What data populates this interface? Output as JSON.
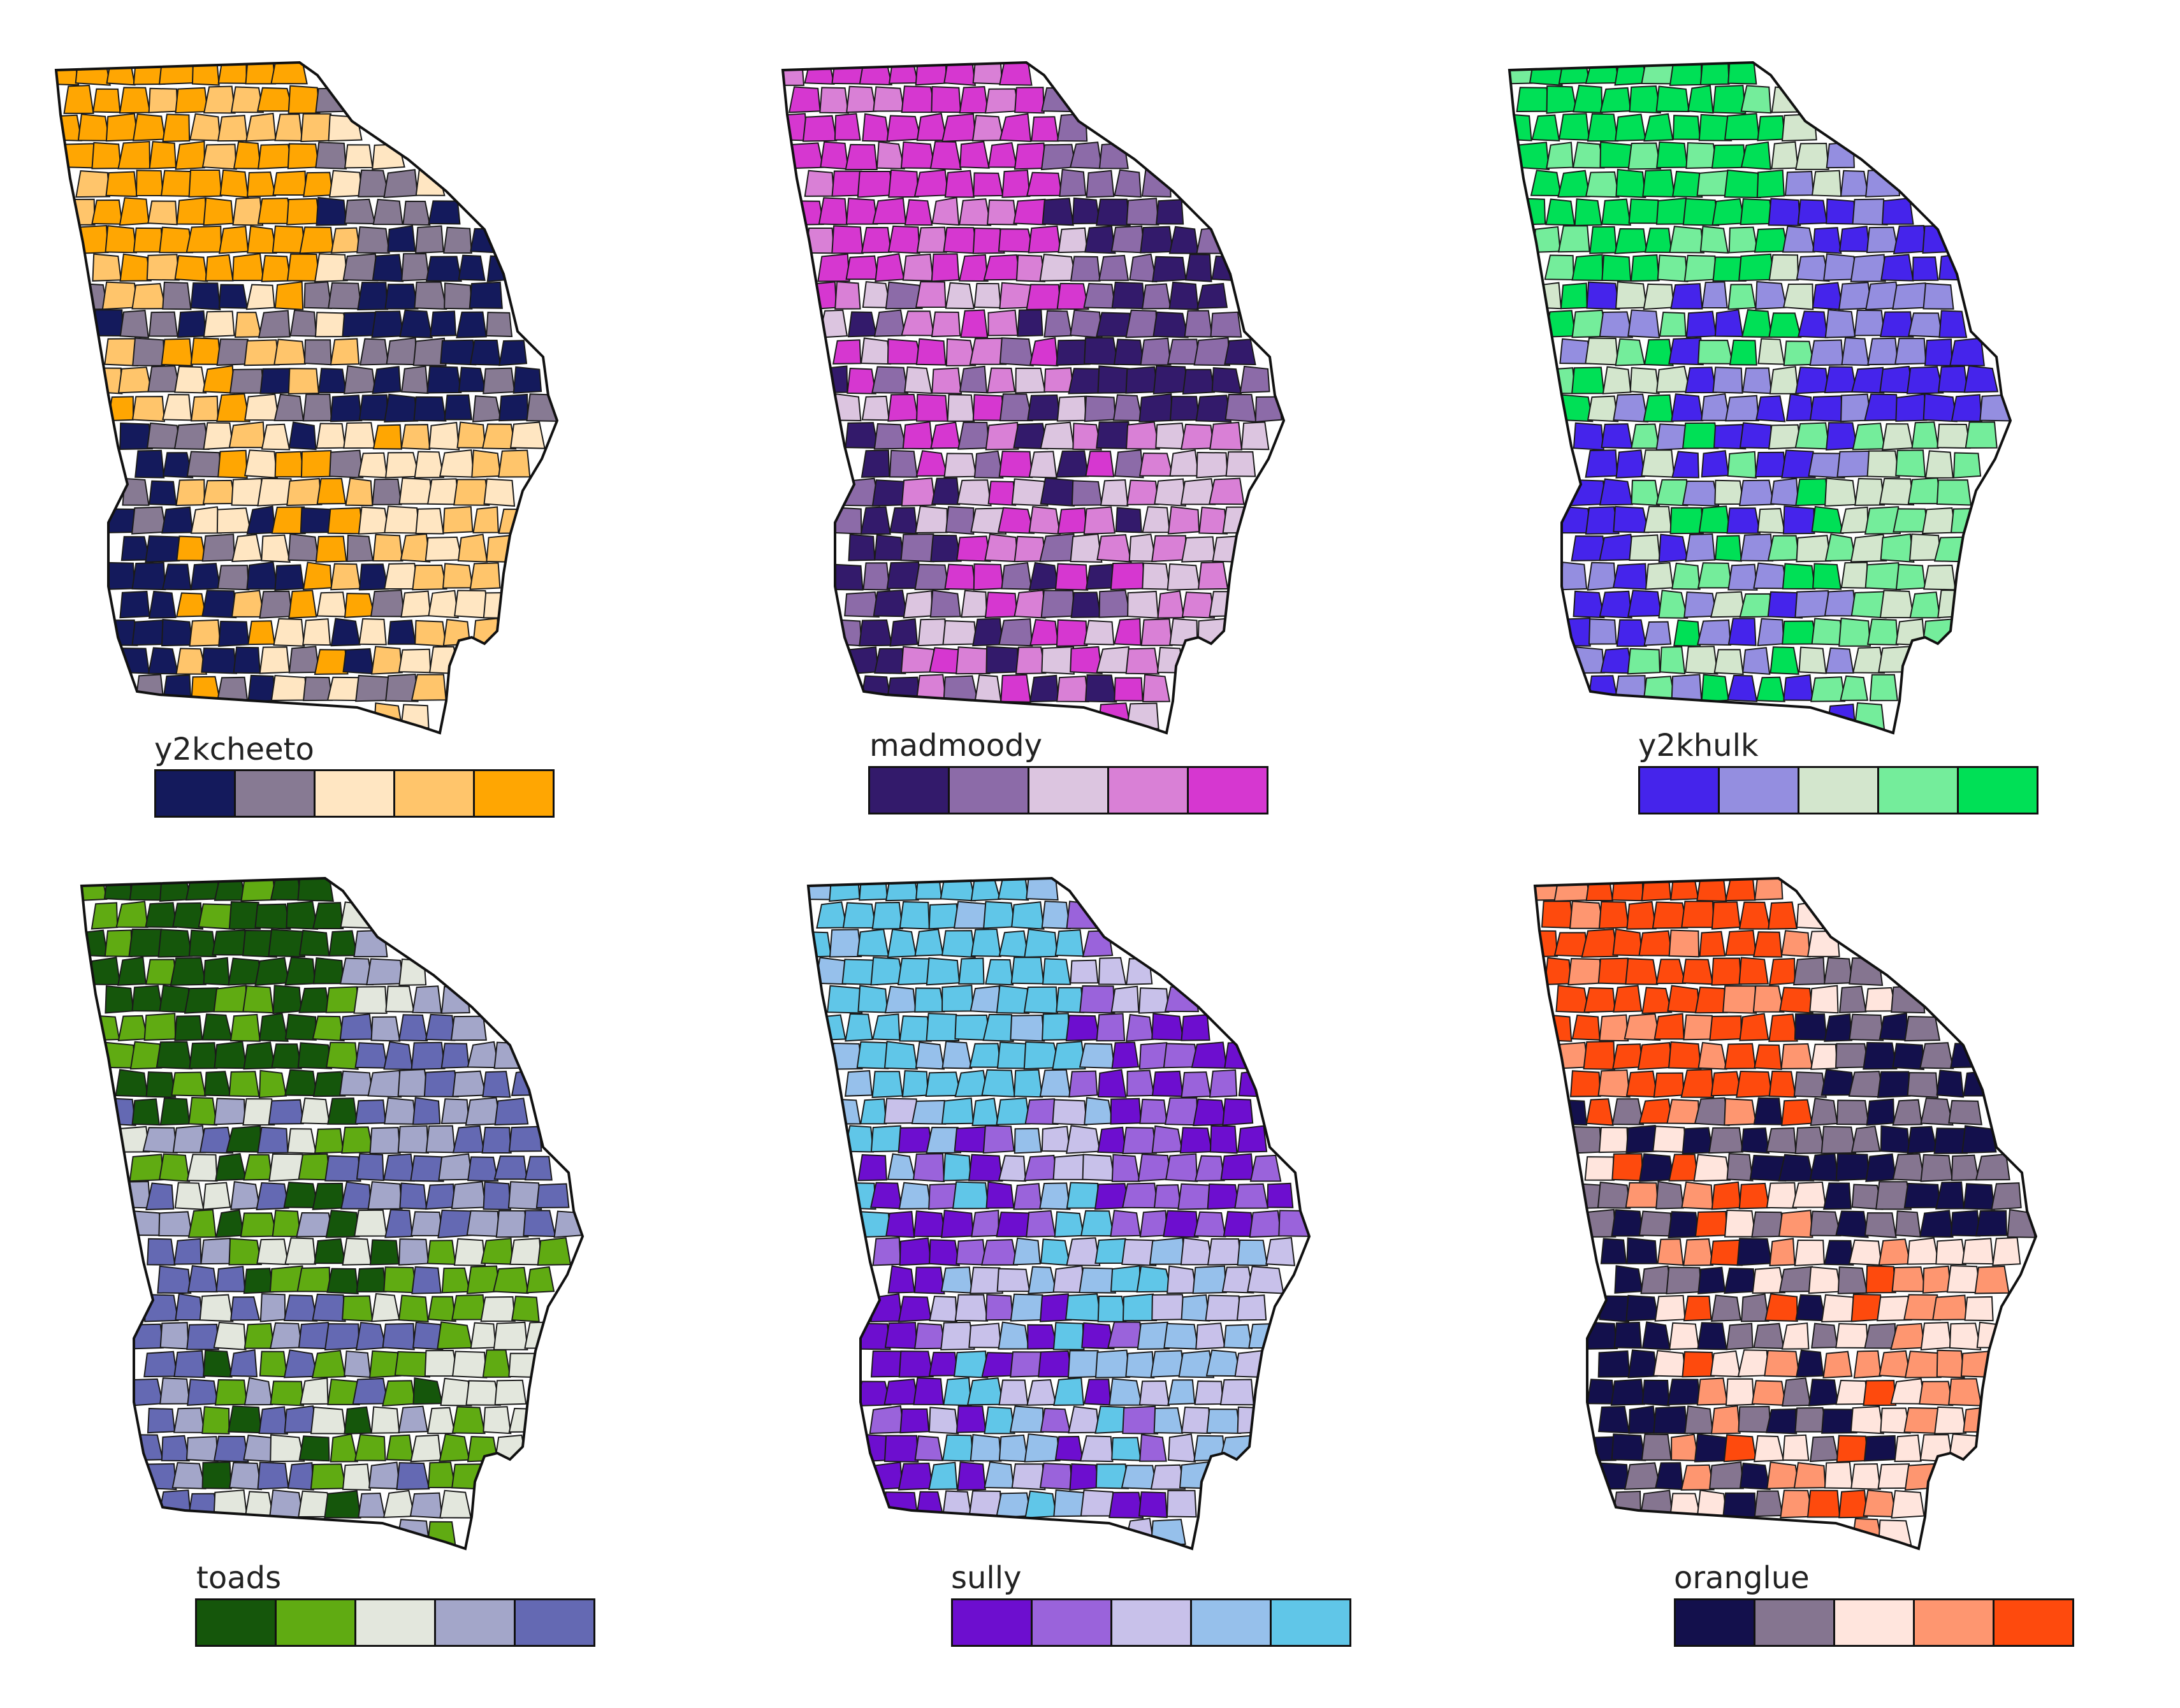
{
  "maps": [
    {
      "id": "y2kcheeto",
      "title": "y2kcheeto",
      "palette": [
        "#141a5c",
        "#877a93",
        "#ffe6c2",
        "#ffc56b",
        "#ffa602"
      ]
    },
    {
      "id": "madmoody",
      "title": "madmoody",
      "palette": [
        "#331a6b",
        "#8c6ba8",
        "#dcc5e0",
        "#d980d6",
        "#d637d0"
      ]
    },
    {
      "id": "y2khulk",
      "title": "y2khulk",
      "palette": [
        "#4524eb",
        "#948ee0",
        "#d3e6cd",
        "#74ed9b",
        "#00e056"
      ]
    },
    {
      "id": "toads",
      "title": "toads",
      "palette": [
        "#15560b",
        "#60ab12",
        "#e3e7dd",
        "#a3a6c9",
        "#6469b3"
      ]
    },
    {
      "id": "sully",
      "title": "sully",
      "palette": [
        "#6d0ecf",
        "#9a63db",
        "#c8c1ea",
        "#96c0eb",
        "#60c6e8"
      ]
    },
    {
      "id": "oranglue",
      "title": "oranglue",
      "palette": [
        "#13104c",
        "#857590",
        "#ffe5dd",
        "#fe9670",
        "#fe4a0d"
      ]
    }
  ]
}
